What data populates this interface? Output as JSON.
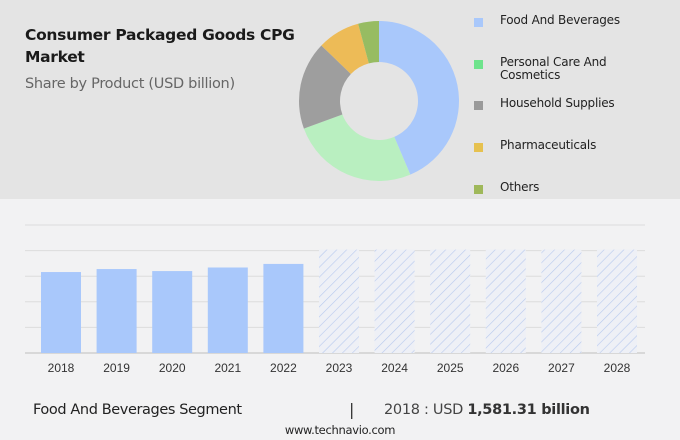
{
  "header": {
    "title": "Consumer Packaged Goods CPG Market",
    "subtitle": "Share by Product (USD billion)"
  },
  "chart_data": [
    {
      "type": "pie",
      "variant": "donut",
      "title": "Share by Product (USD billion)",
      "legend_position": "right",
      "slices": [
        {
          "label": "Food And Beverages",
          "share_pct": 43.6,
          "color": "#a9c8fb"
        },
        {
          "label": "Personal Care And Cosmetics",
          "share_pct": 25.8,
          "color": "#b9efc0"
        },
        {
          "label": "Household Supplies",
          "share_pct": 17.8,
          "color": "#9e9e9e"
        },
        {
          "label": "Pharmaceuticals",
          "share_pct": 8.6,
          "color": "#edbb57"
        },
        {
          "label": "Others",
          "share_pct": 4.2,
          "color": "#97bc62"
        }
      ]
    },
    {
      "type": "bar",
      "title": "Food And Beverages Segment",
      "categories": [
        "2018",
        "2019",
        "2020",
        "2021",
        "2022",
        "2023",
        "2024",
        "2025",
        "2026",
        "2027",
        "2028"
      ],
      "values": [
        1581.31,
        1640,
        1600,
        1670,
        1740,
        null,
        null,
        null,
        null,
        null,
        null
      ],
      "forecast_categories": [
        "2023",
        "2024",
        "2025",
        "2026",
        "2027",
        "2028"
      ],
      "ylim": [
        0,
        2500
      ],
      "grid": true,
      "bar_color": "#a9c8fb",
      "forecast_style": "hatched"
    }
  ],
  "legend": {
    "items": [
      {
        "label": "Food And Beverages",
        "color": "#a9c8fb"
      },
      {
        "label_line1": "Personal Care And",
        "label_line2": "Cosmetics",
        "color": "#6ee38c"
      },
      {
        "label": "Household Supplies",
        "color": "#9a9a9a"
      },
      {
        "label": "Pharmaceuticals",
        "color": "#e6c14f"
      },
      {
        "label": "Others",
        "color": "#9fb85a"
      }
    ]
  },
  "footer": {
    "segment": "Food And Beverages Segment",
    "separator": "|",
    "value_prefix": "2018 : USD",
    "value": "1,581.31 billion",
    "url": "www.technavio.com"
  }
}
